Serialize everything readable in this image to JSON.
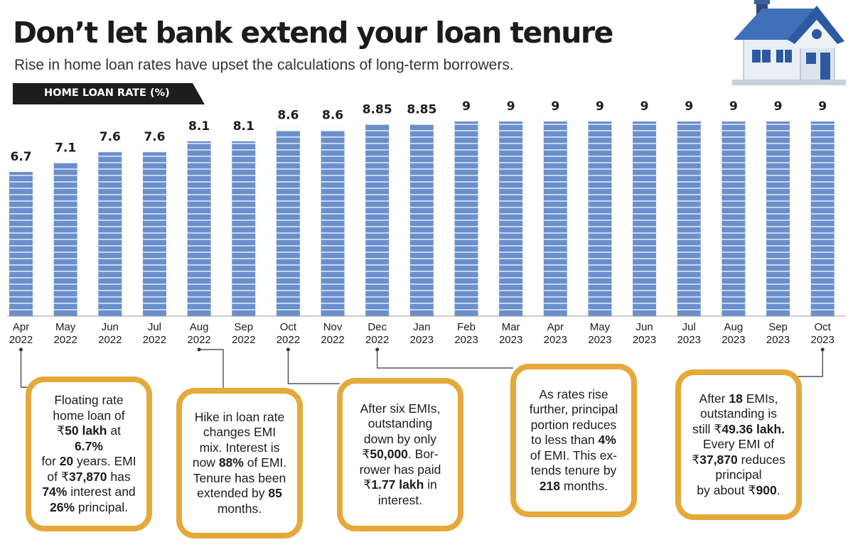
{
  "title": "Don’t let bank extend your loan tenure",
  "subtitle": "Rise in home loan rates have upset the calculations of long-term borrowers.",
  "colors": {
    "bar": "#6a8fcc",
    "bar_stripe": "#ffffff",
    "tag_bg": "#1d1d1d",
    "box_border": "#e5a93a",
    "leader": "#333333"
  },
  "chart_data": {
    "type": "bar",
    "series_label": "HOME LOAN RATE (%)",
    "categories": [
      [
        "Apr",
        "2022"
      ],
      [
        "May",
        "2022"
      ],
      [
        "Jun",
        "2022"
      ],
      [
        "Jul",
        "2022"
      ],
      [
        "Aug",
        "2022"
      ],
      [
        "Sep",
        "2022"
      ],
      [
        "Oct",
        "2022"
      ],
      [
        "Nov",
        "2022"
      ],
      [
        "Dec",
        "2022"
      ],
      [
        "Jan",
        "2023"
      ],
      [
        "Feb",
        "2023"
      ],
      [
        "Mar",
        "2023"
      ],
      [
        "Apr",
        "2023"
      ],
      [
        "May",
        "2023"
      ],
      [
        "Jun",
        "2023"
      ],
      [
        "Jul",
        "2023"
      ],
      [
        "Aug",
        "2023"
      ],
      [
        "Sep",
        "2023"
      ],
      [
        "Oct",
        "2023"
      ]
    ],
    "values": [
      6.7,
      7.1,
      7.6,
      7.6,
      8.1,
      8.1,
      8.6,
      8.6,
      8.85,
      8.85,
      9,
      9,
      9,
      9,
      9,
      9,
      9,
      9,
      9
    ],
    "value_labels": [
      "6.7",
      "7.1",
      "7.6",
      "7.6",
      "8.1",
      "8.1",
      "8.6",
      "8.6",
      "8.85",
      "8.85",
      "9",
      "9",
      "9",
      "9",
      "9",
      "9",
      "9",
      "9",
      "9"
    ],
    "ylim": [
      0,
      9
    ],
    "grid": false,
    "annotations": [
      {
        "category_index": 0,
        "html": "Floating rate<br>home loan of<br>₹<b>50 lakh</b> at <b>6.7%</b><br>for <b>20</b> years. EMI<br>of ₹<b>37,870</b> has<br><b>74%</b> interest and<br><b>26%</b> principal."
      },
      {
        "category_index": 4,
        "html": "Hike in loan rate<br>changes EMI<br>mix. Interest is<br>now <b>88%</b> of EMI.<br>Tenure has been<br>extended by <b>85</b><br>months."
      },
      {
        "category_index": 6,
        "html": "After six EMIs,<br>outstanding<br>down by only<br>₹<b>50,000</b>. Bor-<br>rower has paid<br>₹<b>1.77 lakh</b> in<br>interest."
      },
      {
        "category_index": 8,
        "html": "As rates rise<br>further, principal<br>portion reduces<br>to less than <b>4%</b><br>of EMI. This ex-<br>tends tenure by<br><b>218</b> months."
      },
      {
        "category_index": 18,
        "html": "After <b>18</b> EMIs,<br>outstanding  is<br>still ₹<b>49.36 lakh.</b><br>Every EMI of<br>₹<b>37,870</b> reduces<br>principal<br>by about ₹<b>900</b>."
      }
    ]
  }
}
